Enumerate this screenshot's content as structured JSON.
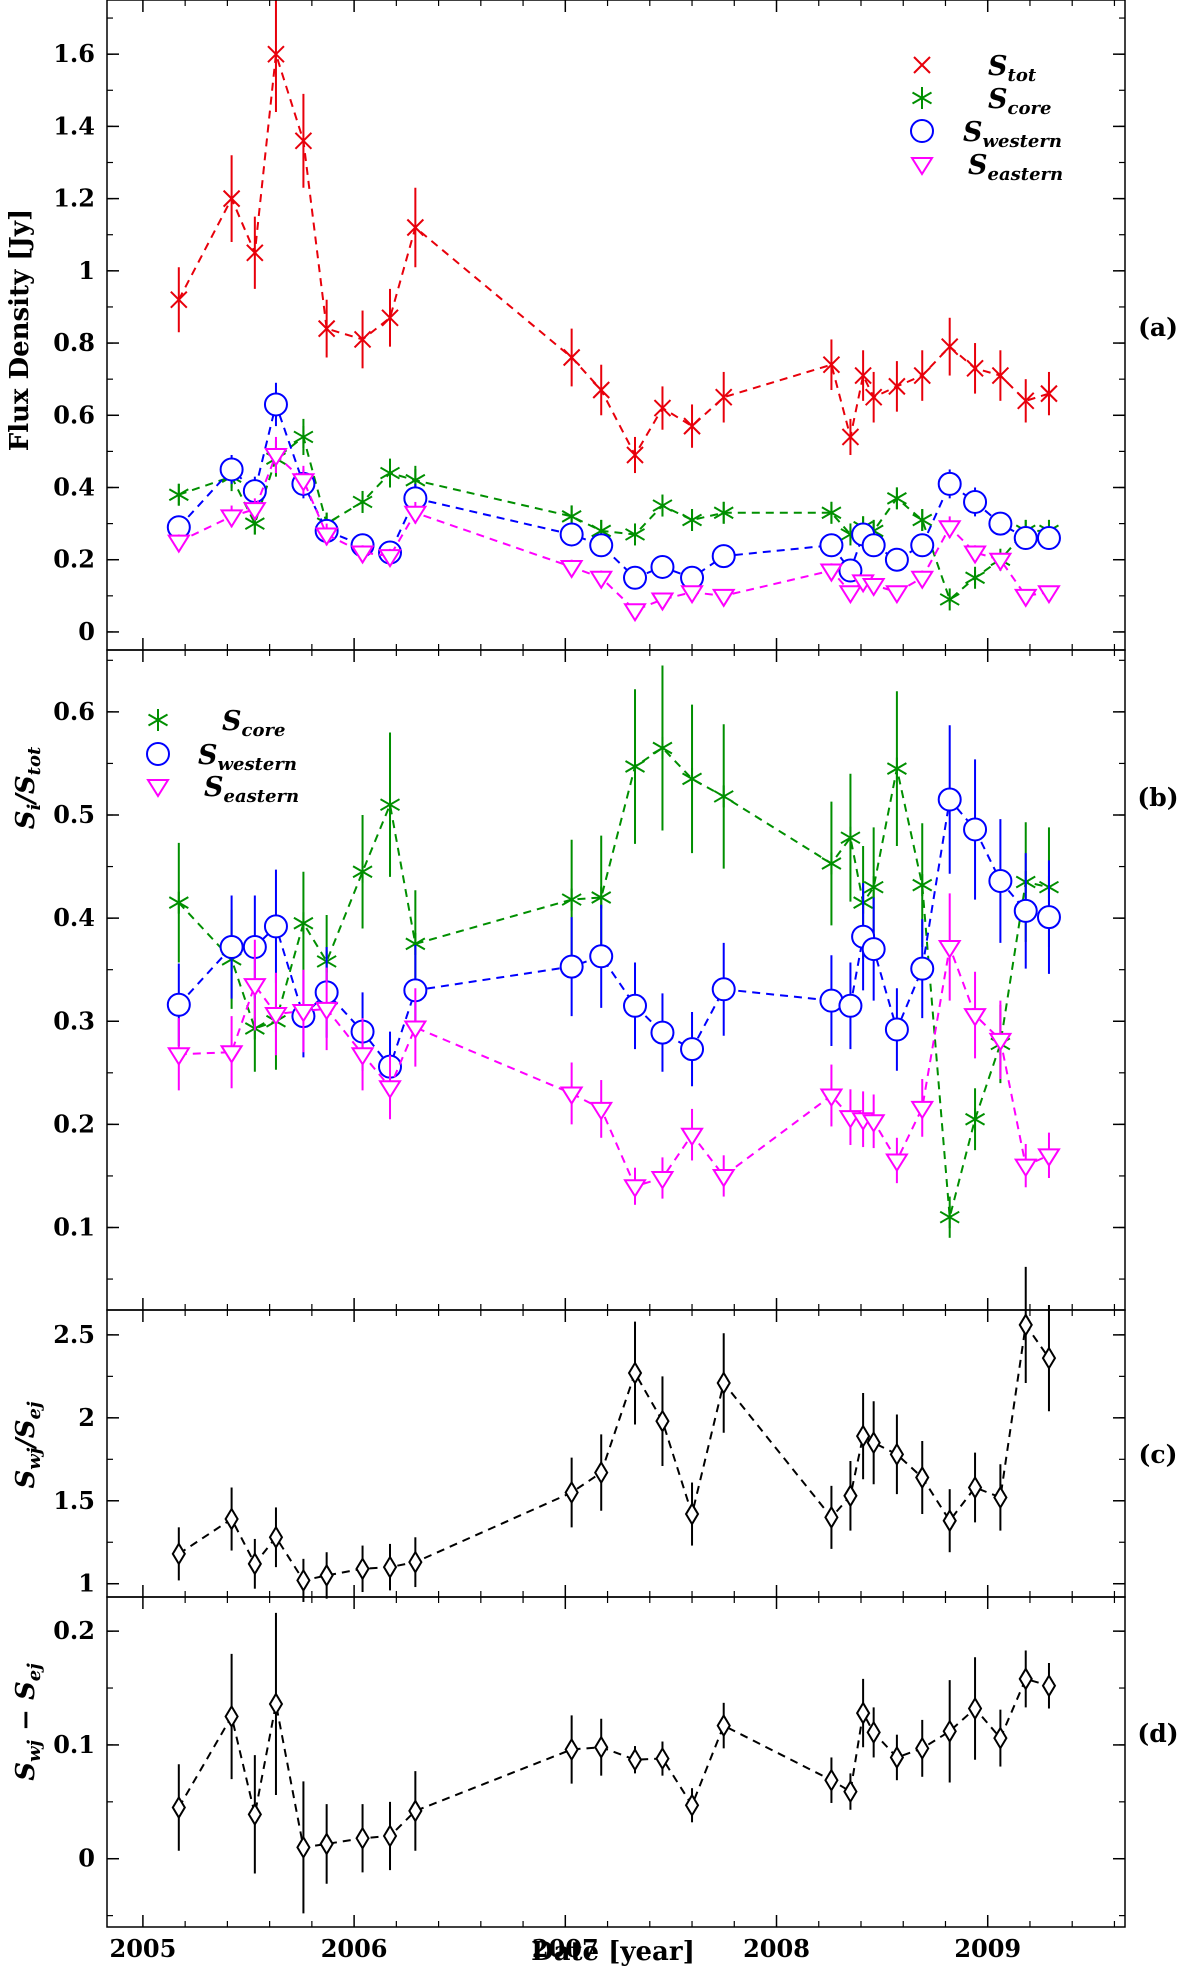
{
  "chart_data": [
    {
      "type": "scatter",
      "panel": "(a)",
      "ylabel": "Flux Density [Jy]",
      "ylim": [
        -0.05,
        1.75
      ],
      "yticks": [
        0,
        0.2,
        0.4,
        0.6,
        0.8,
        1,
        1.2,
        1.4,
        1.6
      ],
      "ytick_labels": [
        "0",
        "0.2",
        "0.4",
        "0.6",
        "0.8",
        "1",
        "1.2",
        "1.4",
        "1.6"
      ],
      "legend": "top-right",
      "series": [
        {
          "name": "S_tot",
          "label_main": "S",
          "label_sub": "tot",
          "color": "#e8000b",
          "marker": "x",
          "x": [
            2005.17,
            2005.42,
            2005.53,
            2005.63,
            2005.76,
            2005.87,
            2006.04,
            2006.17,
            2006.29,
            2007.03,
            2007.17,
            2007.33,
            2007.46,
            2007.6,
            2007.75,
            2008.26,
            2008.35,
            2008.41,
            2008.46,
            2008.57,
            2008.69,
            2008.82,
            2008.94,
            2009.06,
            2009.18,
            2009.29
          ],
          "y": [
            0.92,
            1.2,
            1.05,
            1.6,
            1.36,
            0.84,
            0.81,
            0.87,
            1.12,
            0.76,
            0.67,
            0.49,
            0.62,
            0.57,
            0.65,
            0.74,
            0.54,
            0.71,
            0.65,
            0.68,
            0.71,
            0.79,
            0.73,
            0.71,
            0.64,
            0.66
          ],
          "err": [
            0.09,
            0.12,
            0.1,
            0.16,
            0.13,
            0.08,
            0.08,
            0.08,
            0.11,
            0.08,
            0.07,
            0.05,
            0.06,
            0.06,
            0.07,
            0.07,
            0.05,
            0.07,
            0.07,
            0.07,
            0.07,
            0.08,
            0.07,
            0.07,
            0.06,
            0.06
          ]
        },
        {
          "name": "S_core",
          "label_main": "S",
          "label_sub": "core",
          "color": "#008f00",
          "marker": "asterisk",
          "x": [
            2005.17,
            2005.42,
            2005.53,
            2005.63,
            2005.76,
            2005.87,
            2006.04,
            2006.17,
            2006.29,
            2007.03,
            2007.17,
            2007.33,
            2007.46,
            2007.6,
            2007.75,
            2008.26,
            2008.35,
            2008.41,
            2008.46,
            2008.57,
            2008.69,
            2008.82,
            2008.94,
            2009.06,
            2009.18,
            2009.29
          ],
          "y": [
            0.38,
            0.43,
            0.3,
            0.48,
            0.54,
            0.3,
            0.36,
            0.44,
            0.42,
            0.32,
            0.28,
            0.27,
            0.35,
            0.31,
            0.33,
            0.33,
            0.27,
            0.29,
            0.28,
            0.37,
            0.31,
            0.09,
            0.15,
            0.2,
            0.28,
            0.28
          ],
          "err": [
            0.03,
            0.04,
            0.03,
            0.05,
            0.05,
            0.03,
            0.03,
            0.04,
            0.04,
            0.03,
            0.03,
            0.02,
            0.03,
            0.03,
            0.03,
            0.03,
            0.02,
            0.03,
            0.03,
            0.03,
            0.03,
            0.01,
            0.02,
            0.02,
            0.03,
            0.03
          ]
        },
        {
          "name": "S_western",
          "label_main": "S",
          "label_sub": "western",
          "color": "#0000ff",
          "marker": "circle",
          "x": [
            2005.17,
            2005.42,
            2005.53,
            2005.63,
            2005.76,
            2005.87,
            2006.04,
            2006.17,
            2006.29,
            2007.03,
            2007.17,
            2007.33,
            2007.46,
            2007.6,
            2007.75,
            2008.26,
            2008.35,
            2008.41,
            2008.46,
            2008.57,
            2008.69,
            2008.82,
            2008.94,
            2009.06,
            2009.18,
            2009.29
          ],
          "y": [
            0.29,
            0.45,
            0.39,
            0.63,
            0.41,
            0.28,
            0.24,
            0.22,
            0.37,
            0.27,
            0.24,
            0.15,
            0.18,
            0.15,
            0.21,
            0.24,
            0.17,
            0.27,
            0.24,
            0.2,
            0.24,
            0.41,
            0.36,
            0.3,
            0.26,
            0.26
          ],
          "err": [
            0.03,
            0.04,
            0.04,
            0.06,
            0.04,
            0.03,
            0.02,
            0.02,
            0.04,
            0.03,
            0.02,
            0.02,
            0.02,
            0.02,
            0.02,
            0.02,
            0.02,
            0.03,
            0.02,
            0.02,
            0.02,
            0.04,
            0.04,
            0.03,
            0.03,
            0.03
          ]
        },
        {
          "name": "S_eastern",
          "label_main": "S",
          "label_sub": "eastern",
          "color": "#ff00ff",
          "marker": "triangle",
          "x": [
            2005.17,
            2005.42,
            2005.53,
            2005.63,
            2005.76,
            2005.87,
            2006.04,
            2006.17,
            2006.29,
            2007.03,
            2007.17,
            2007.33,
            2007.46,
            2007.6,
            2007.75,
            2008.26,
            2008.35,
            2008.41,
            2008.46,
            2008.57,
            2008.69,
            2008.82,
            2008.94,
            2009.06,
            2009.18,
            2009.29
          ],
          "y": [
            0.25,
            0.32,
            0.34,
            0.49,
            0.42,
            0.27,
            0.22,
            0.21,
            0.33,
            0.18,
            0.15,
            0.06,
            0.09,
            0.11,
            0.1,
            0.17,
            0.11,
            0.14,
            0.13,
            0.11,
            0.15,
            0.29,
            0.22,
            0.2,
            0.1,
            0.11
          ],
          "err": [
            0.02,
            0.03,
            0.03,
            0.05,
            0.04,
            0.03,
            0.02,
            0.02,
            0.03,
            0.02,
            0.02,
            0.01,
            0.01,
            0.01,
            0.01,
            0.02,
            0.01,
            0.01,
            0.01,
            0.01,
            0.02,
            0.03,
            0.02,
            0.02,
            0.01,
            0.01
          ]
        }
      ]
    },
    {
      "type": "scatter",
      "panel": "(b)",
      "ylabel_main": "S",
      "ylabel_sub": "i",
      "ylabel_div": "/S",
      "ylabel_sub2": "tot",
      "ylim": [
        0.02,
        0.66
      ],
      "yticks": [
        0.1,
        0.2,
        0.3,
        0.4,
        0.5,
        0.6
      ],
      "ytick_labels": [
        "0.1",
        "0.2",
        "0.3",
        "0.4",
        "0.5",
        "0.6"
      ],
      "legend": "top-left",
      "series": [
        {
          "name": "S_core",
          "label_main": "S",
          "label_sub": "core",
          "color": "#008f00",
          "marker": "asterisk",
          "x": [
            2005.17,
            2005.42,
            2005.53,
            2005.63,
            2005.76,
            2005.87,
            2006.04,
            2006.17,
            2006.29,
            2007.03,
            2007.17,
            2007.33,
            2007.46,
            2007.6,
            2007.75,
            2008.26,
            2008.35,
            2008.41,
            2008.46,
            2008.57,
            2008.69,
            2008.82,
            2008.94,
            2009.06,
            2009.18,
            2009.29
          ],
          "y": [
            0.415,
            0.36,
            0.293,
            0.3,
            0.395,
            0.358,
            0.445,
            0.51,
            0.375,
            0.418,
            0.42,
            0.547,
            0.565,
            0.535,
            0.518,
            0.453,
            0.478,
            0.415,
            0.43,
            0.545,
            0.432,
            0.11,
            0.205,
            0.278,
            0.435,
            0.43
          ],
          "err": [
            0.058,
            0.048,
            0.042,
            0.047,
            0.05,
            0.045,
            0.055,
            0.07,
            0.052,
            0.058,
            0.06,
            0.075,
            0.08,
            0.072,
            0.07,
            0.06,
            0.062,
            0.055,
            0.058,
            0.075,
            0.06,
            0.02,
            0.03,
            0.038,
            0.058,
            0.058
          ]
        },
        {
          "name": "S_western",
          "label_main": "S",
          "label_sub": "western",
          "color": "#0000ff",
          "marker": "circle",
          "x": [
            2005.17,
            2005.42,
            2005.53,
            2005.63,
            2005.76,
            2005.87,
            2006.04,
            2006.17,
            2006.29,
            2007.03,
            2007.17,
            2007.33,
            2007.46,
            2007.6,
            2007.75,
            2008.26,
            2008.35,
            2008.41,
            2008.46,
            2008.57,
            2008.69,
            2008.82,
            2008.94,
            2009.06,
            2009.18,
            2009.29
          ],
          "y": [
            0.316,
            0.372,
            0.372,
            0.392,
            0.305,
            0.328,
            0.29,
            0.256,
            0.33,
            0.353,
            0.363,
            0.315,
            0.289,
            0.273,
            0.331,
            0.32,
            0.315,
            0.382,
            0.37,
            0.292,
            0.351,
            0.515,
            0.486,
            0.436,
            0.407,
            0.401
          ],
          "err": [
            0.04,
            0.05,
            0.05,
            0.055,
            0.04,
            0.044,
            0.038,
            0.034,
            0.044,
            0.048,
            0.05,
            0.042,
            0.038,
            0.036,
            0.045,
            0.044,
            0.042,
            0.052,
            0.05,
            0.04,
            0.048,
            0.072,
            0.068,
            0.06,
            0.056,
            0.055
          ]
        },
        {
          "name": "S_eastern",
          "label_main": "S",
          "label_sub": "eastern",
          "color": "#ff00ff",
          "marker": "triangle",
          "x": [
            2005.17,
            2005.42,
            2005.53,
            2005.63,
            2005.76,
            2005.87,
            2006.04,
            2006.17,
            2006.29,
            2007.03,
            2007.17,
            2007.33,
            2007.46,
            2007.6,
            2007.75,
            2008.26,
            2008.35,
            2008.41,
            2008.46,
            2008.57,
            2008.69,
            2008.82,
            2008.94,
            2009.06,
            2009.18,
            2009.29
          ],
          "y": [
            0.268,
            0.27,
            0.335,
            0.307,
            0.31,
            0.312,
            0.268,
            0.236,
            0.294,
            0.23,
            0.215,
            0.14,
            0.148,
            0.19,
            0.15,
            0.228,
            0.207,
            0.205,
            0.203,
            0.165,
            0.216,
            0.372,
            0.306,
            0.282,
            0.16,
            0.17
          ],
          "err": [
            0.035,
            0.035,
            0.044,
            0.04,
            0.04,
            0.04,
            0.035,
            0.031,
            0.038,
            0.03,
            0.028,
            0.018,
            0.02,
            0.025,
            0.02,
            0.03,
            0.027,
            0.027,
            0.026,
            0.022,
            0.028,
            0.052,
            0.042,
            0.038,
            0.021,
            0.022
          ]
        }
      ]
    },
    {
      "type": "scatter",
      "panel": "(c)",
      "ylabel_main": "S",
      "ylabel_sub": "wj",
      "ylabel_div": "/S",
      "ylabel_sub2": "ej",
      "ylim": [
        0.92,
        2.65
      ],
      "yticks": [
        1,
        1.5,
        2,
        2.5
      ],
      "ytick_labels": [
        "1",
        "1.5",
        "2",
        "2.5"
      ],
      "series": [
        {
          "name": "S_wj/S_ej",
          "color": "#000000",
          "marker": "diamond",
          "x": [
            2005.17,
            2005.42,
            2005.53,
            2005.63,
            2005.76,
            2005.87,
            2006.04,
            2006.17,
            2006.29,
            2007.03,
            2007.17,
            2007.33,
            2007.46,
            2007.6,
            2007.75,
            2008.26,
            2008.35,
            2008.41,
            2008.46,
            2008.57,
            2008.69,
            2008.82,
            2008.94,
            2009.06,
            2009.18,
            2009.29
          ],
          "y": [
            1.18,
            1.39,
            1.12,
            1.28,
            1.02,
            1.05,
            1.09,
            1.1,
            1.13,
            1.55,
            1.67,
            2.27,
            1.98,
            1.42,
            2.21,
            1.4,
            1.53,
            1.89,
            1.85,
            1.78,
            1.64,
            1.38,
            1.58,
            1.52,
            2.56,
            2.36
          ],
          "err": [
            0.16,
            0.19,
            0.15,
            0.18,
            0.13,
            0.14,
            0.14,
            0.14,
            0.15,
            0.21,
            0.23,
            0.31,
            0.27,
            0.19,
            0.3,
            0.19,
            0.21,
            0.26,
            0.25,
            0.24,
            0.22,
            0.19,
            0.21,
            0.2,
            0.35,
            0.32
          ]
        }
      ]
    },
    {
      "type": "scatter",
      "panel": "(d)",
      "ylabel_main": "S",
      "ylabel_sub": "wj",
      "ylabel_div": " − S",
      "ylabel_sub2": "ej",
      "ylim": [
        -0.06,
        0.23
      ],
      "yticks": [
        0,
        0.1,
        0.2
      ],
      "ytick_labels": [
        "0",
        "0.1",
        "0.2"
      ],
      "xlabel": "Date [year]",
      "xlim": [
        2004.83,
        2009.65
      ],
      "xticks": [
        2005,
        2006,
        2007,
        2008,
        2009
      ],
      "xtick_labels": [
        "2005",
        "2006",
        "2007",
        "2008",
        "2009"
      ],
      "series": [
        {
          "name": "S_wj-S_ej",
          "color": "#000000",
          "marker": "diamond",
          "x": [
            2005.17,
            2005.42,
            2005.53,
            2005.63,
            2005.76,
            2005.87,
            2006.04,
            2006.17,
            2006.29,
            2007.03,
            2007.17,
            2007.33,
            2007.46,
            2007.6,
            2007.75,
            2008.26,
            2008.35,
            2008.41,
            2008.46,
            2008.57,
            2008.69,
            2008.82,
            2008.94,
            2009.06,
            2009.18,
            2009.29
          ],
          "y": [
            0.045,
            0.125,
            0.039,
            0.136,
            0.01,
            0.013,
            0.018,
            0.02,
            0.042,
            0.096,
            0.098,
            0.087,
            0.088,
            0.047,
            0.117,
            0.069,
            0.059,
            0.128,
            0.111,
            0.089,
            0.097,
            0.112,
            0.132,
            0.106,
            0.158,
            0.152
          ],
          "err": [
            0.038,
            0.055,
            0.052,
            0.08,
            0.058,
            0.035,
            0.03,
            0.03,
            0.035,
            0.03,
            0.025,
            0.012,
            0.015,
            0.015,
            0.02,
            0.02,
            0.016,
            0.03,
            0.022,
            0.02,
            0.025,
            0.045,
            0.045,
            0.025,
            0.025,
            0.02
          ]
        }
      ]
    }
  ]
}
